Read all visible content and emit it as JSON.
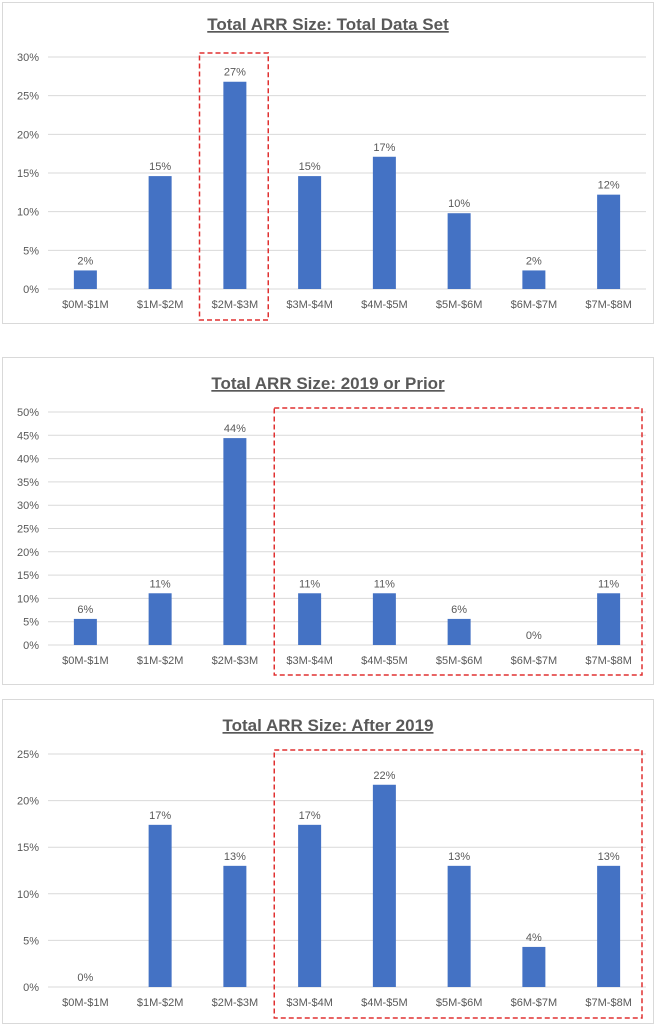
{
  "colors": {
    "bar": "#4472C4",
    "highlight_box": "#e03030",
    "text": "#595959",
    "grid": "#d9d9d9"
  },
  "chart_data": [
    {
      "type": "bar",
      "title": "Total ARR Size: Total Data Set",
      "categories": [
        "$0M-$1M",
        "$1M-$2M",
        "$2M-$3M",
        "$3M-$4M",
        "$4M-$5M",
        "$5M-$6M",
        "$6M-$7M",
        "$7M-$8M"
      ],
      "values": [
        2.4,
        14.6,
        26.8,
        14.6,
        17.1,
        9.8,
        2.4,
        12.2
      ],
      "data_labels": [
        "2%",
        "15%",
        "27%",
        "15%",
        "17%",
        "10%",
        "2%",
        "12%"
      ],
      "ylim": [
        0,
        30
      ],
      "yticks": [
        "0%",
        "5%",
        "10%",
        "15%",
        "20%",
        "25%",
        "30%"
      ],
      "grid": true,
      "highlight_categories": [
        2,
        2
      ]
    },
    {
      "type": "bar",
      "title": "Total ARR Size: 2019 or Prior",
      "categories": [
        "$0M-$1M",
        "$1M-$2M",
        "$2M-$3M",
        "$3M-$4M",
        "$4M-$5M",
        "$5M-$6M",
        "$6M-$7M",
        "$7M-$8M"
      ],
      "values": [
        5.6,
        11.1,
        44.4,
        11.1,
        11.1,
        5.6,
        0,
        11.1
      ],
      "data_labels": [
        "6%",
        "11%",
        "44%",
        "11%",
        "11%",
        "6%",
        "0%",
        "11%"
      ],
      "ylim": [
        0,
        50
      ],
      "yticks": [
        "0%",
        "5%",
        "10%",
        "15%",
        "20%",
        "25%",
        "30%",
        "35%",
        "40%",
        "45%",
        "50%"
      ],
      "grid": true,
      "highlight_categories": [
        3,
        7
      ]
    },
    {
      "type": "bar",
      "title": "Total ARR Size: After 2019",
      "categories": [
        "$0M-$1M",
        "$1M-$2M",
        "$2M-$3M",
        "$3M-$4M",
        "$4M-$5M",
        "$5M-$6M",
        "$6M-$7M",
        "$7M-$8M"
      ],
      "values": [
        0,
        17.4,
        13.0,
        17.4,
        21.7,
        13.0,
        4.3,
        13.0
      ],
      "data_labels": [
        "0%",
        "17%",
        "13%",
        "17%",
        "22%",
        "13%",
        "4%",
        "13%"
      ],
      "ylim": [
        0,
        25
      ],
      "yticks": [
        "0%",
        "5%",
        "10%",
        "15%",
        "20%",
        "25%"
      ],
      "grid": true,
      "highlight_categories": [
        3,
        7
      ]
    }
  ]
}
